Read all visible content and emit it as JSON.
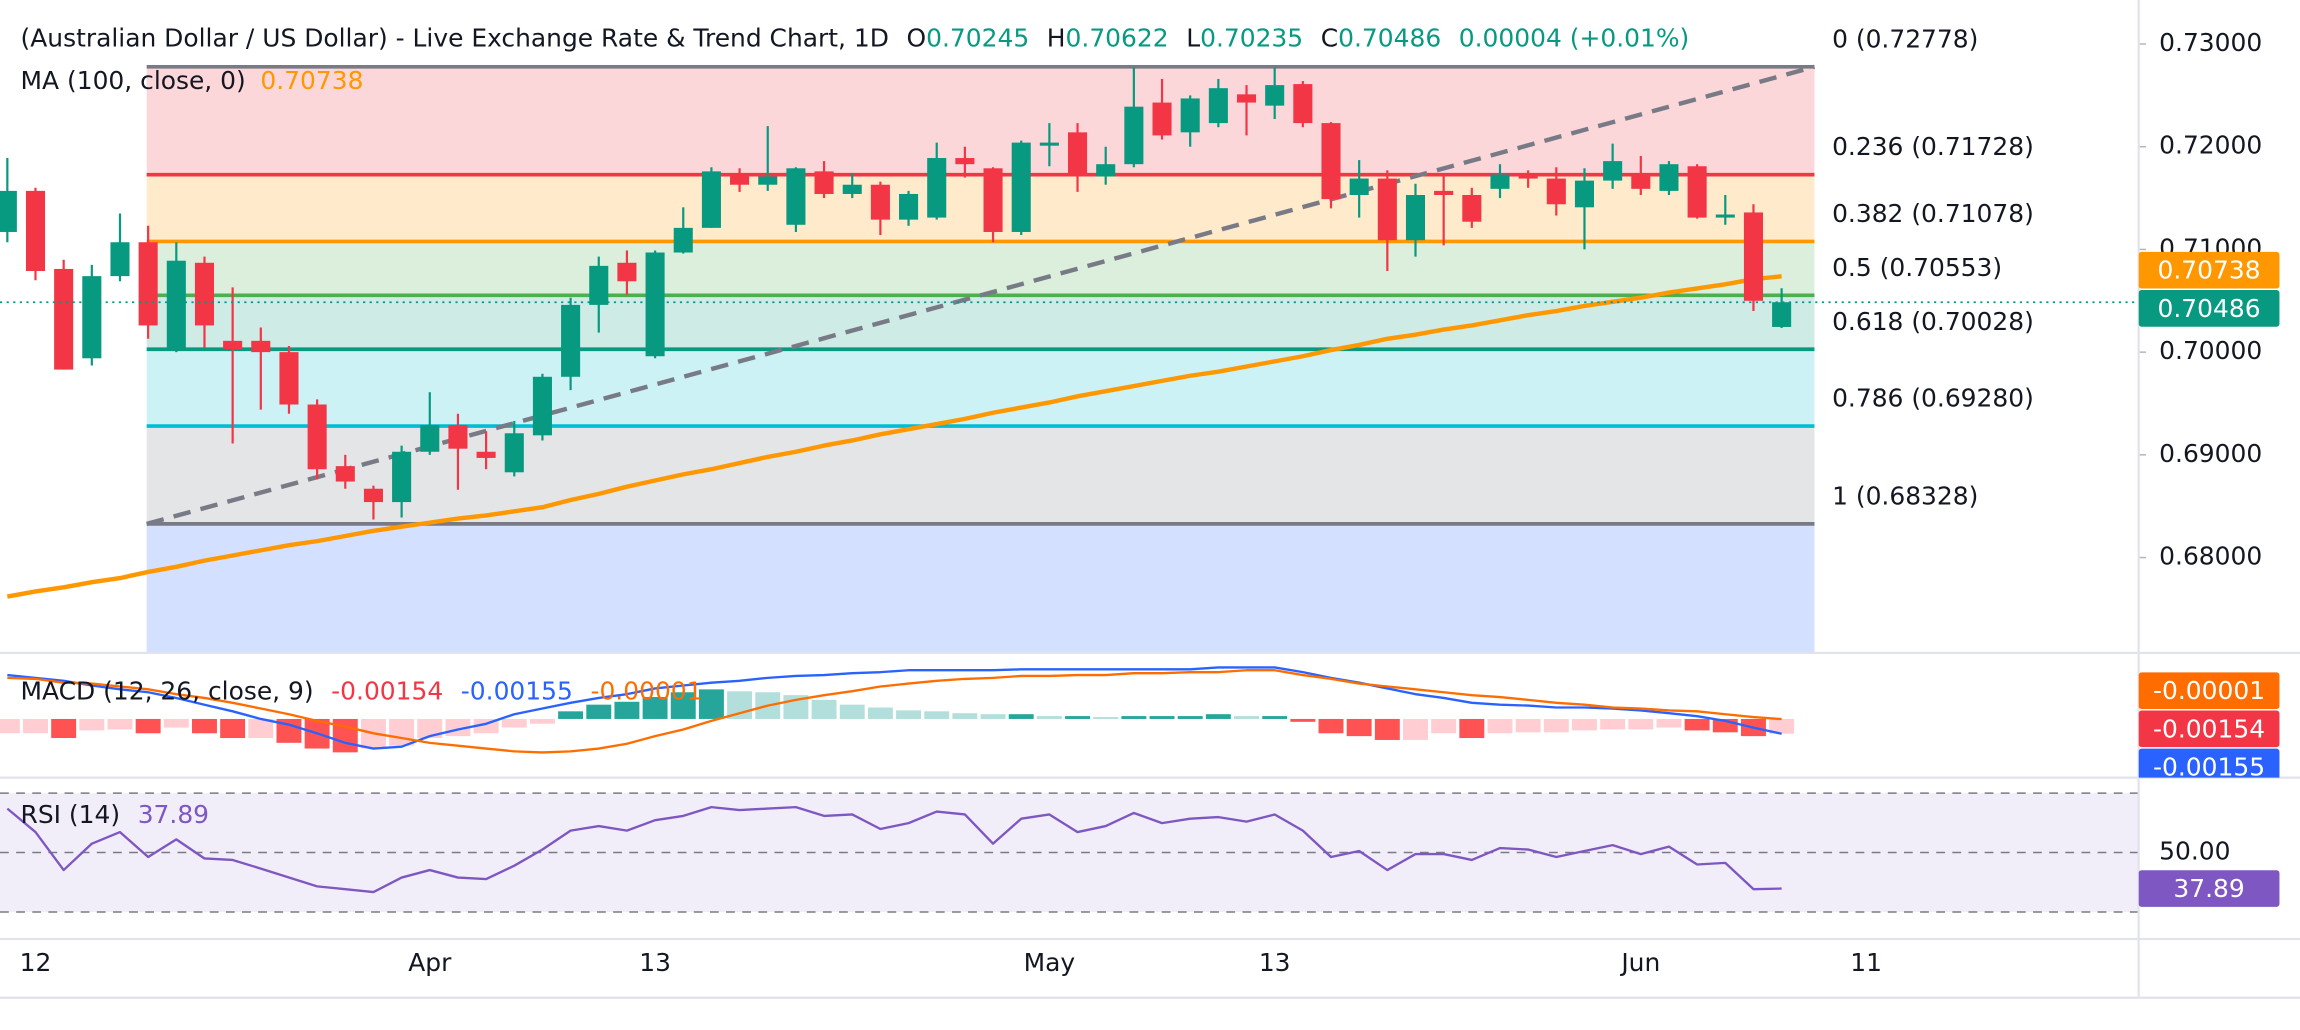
{
  "chart_data": {
    "type": "candlestick",
    "title": "(Australian Dollar / US Dollar) - Live Exchange Rate & Trend Chart, 1D",
    "header": {
      "open_label": "O",
      "high_label": "H",
      "low_label": "L",
      "close_label": "C",
      "change": "0.00004 (+0.01%)"
    },
    "categories": [
      null,
      "12",
      null,
      null,
      null,
      null,
      null,
      null,
      null,
      null,
      null,
      null,
      null,
      null,
      null,
      "Apr",
      null,
      null,
      null,
      null,
      null,
      null,
      null,
      "13",
      null,
      null,
      null,
      null,
      null,
      null,
      null,
      null,
      null,
      null,
      null,
      null,
      null,
      "May",
      null,
      null,
      null,
      null,
      null,
      null,
      null,
      "13",
      null,
      null,
      null,
      null,
      null,
      null,
      null,
      null,
      null,
      null,
      null,
      null,
      "Jun",
      null,
      null,
      null,
      null,
      null,
      null,
      null,
      "11"
    ],
    "open": [
      0.7117,
      0.7157,
      0.7081,
      0.6994,
      0.7074,
      0.7107,
      0.7004,
      0.7087,
      0.7011,
      0.7011,
      0.7,
      0.6949,
      0.6889,
      0.6867,
      0.6854,
      0.6903,
      0.6929,
      0.6903,
      0.6883,
      0.6919,
      0.6976,
      0.7046,
      0.7087,
      0.6996,
      0.7097,
      0.7121,
      0.7171,
      0.7163,
      0.7124,
      0.7176,
      0.7154,
      0.7163,
      0.7129,
      0.7131,
      0.7189,
      0.7179,
      0.7117,
      0.7201,
      0.7214,
      0.7171,
      0.7183,
      0.7243,
      0.7214,
      0.7223,
      0.7251,
      0.724,
      0.7261,
      0.7223,
      0.7153,
      0.7169,
      0.7109,
      0.7157,
      0.7153,
      0.7159,
      0.7173,
      0.7169,
      0.7141,
      0.7167,
      0.7174,
      0.7157,
      0.7181,
      0.7131,
      0.7136,
      0.70245,
      null,
      null,
      null
    ],
    "high": [
      0.7189,
      0.716,
      0.709,
      0.7085,
      0.7135,
      0.7123,
      0.7107,
      0.7093,
      0.7063,
      0.7024,
      0.7006,
      0.6954,
      0.69,
      0.687,
      0.6909,
      0.6961,
      0.694,
      0.6923,
      0.6933,
      0.6979,
      0.7053,
      0.7093,
      0.7099,
      0.7099,
      0.7141,
      0.718,
      0.7179,
      0.722,
      0.718,
      0.7186,
      0.7174,
      0.7166,
      0.7157,
      0.7204,
      0.72,
      0.718,
      0.7206,
      0.7223,
      0.7223,
      0.72,
      0.7277,
      0.7266,
      0.725,
      0.7266,
      0.726,
      0.7277,
      0.7264,
      0.7224,
      0.7187,
      0.7177,
      0.7164,
      0.7174,
      0.716,
      0.7183,
      0.7177,
      0.718,
      0.7179,
      0.7203,
      0.7191,
      0.7186,
      0.7183,
      0.7153,
      0.7144,
      0.70622,
      null,
      null,
      null
    ],
    "low": [
      0.7107,
      0.707,
      0.6983,
      0.6987,
      0.7069,
      0.7013,
      0.7,
      0.7004,
      0.6911,
      0.6944,
      0.694,
      0.6876,
      0.6867,
      0.6837,
      0.6839,
      0.69,
      0.6866,
      0.6886,
      0.6879,
      0.6914,
      0.6963,
      0.7019,
      0.7056,
      0.6994,
      0.7096,
      0.7121,
      0.7156,
      0.7157,
      0.7117,
      0.715,
      0.715,
      0.7114,
      0.7123,
      0.7129,
      0.717,
      0.7107,
      0.7114,
      0.7181,
      0.7156,
      0.7163,
      0.718,
      0.7207,
      0.72,
      0.7219,
      0.7211,
      0.7227,
      0.7219,
      0.714,
      0.7131,
      0.7079,
      0.7093,
      0.7104,
      0.7121,
      0.715,
      0.716,
      0.7133,
      0.71,
      0.7159,
      0.7153,
      0.7153,
      0.713,
      0.7124,
      0.704,
      0.70235,
      null,
      null,
      null
    ],
    "close": [
      0.7157,
      0.7079,
      0.6983,
      0.7074,
      0.7107,
      0.7026,
      0.7089,
      0.7026,
      0.7003,
      0.7,
      0.6949,
      0.6886,
      0.6874,
      0.6854,
      0.6903,
      0.6929,
      0.6906,
      0.6897,
      0.6921,
      0.6976,
      0.7046,
      0.7084,
      0.7069,
      0.7097,
      0.7121,
      0.7176,
      0.7163,
      0.7171,
      0.7179,
      0.7154,
      0.7163,
      0.7129,
      0.7154,
      0.7189,
      0.7183,
      0.7117,
      0.7204,
      0.7204,
      0.7171,
      0.7183,
      0.7239,
      0.7211,
      0.7247,
      0.7257,
      0.7243,
      0.726,
      0.7223,
      0.7149,
      0.7169,
      0.7109,
      0.7153,
      0.7153,
      0.7127,
      0.7173,
      0.7169,
      0.7144,
      0.7167,
      0.7186,
      0.7159,
      0.7183,
      0.7131,
      0.7134,
      0.705,
      0.70486,
      null,
      null,
      null
    ],
    "colors": {
      "up": "#089981",
      "down": "#f23645"
    },
    "ylim": [
      0.670714,
      0.734286
    ],
    "yticks": [
      {
        "value": 0.73,
        "label": "0.73000"
      },
      {
        "value": 0.72,
        "label": "0.72000"
      },
      {
        "value": 0.71,
        "label": "0.71000"
      },
      {
        "value": 0.7,
        "label": "0.70000"
      },
      {
        "value": 0.69,
        "label": "0.69000"
      },
      {
        "value": 0.68,
        "label": "0.68000"
      }
    ],
    "grid": false,
    "ma": {
      "name": "MA (100, close, 0)",
      "color": "#ff9800",
      "values": [
        0.6762,
        0.6767,
        0.6771,
        0.6776,
        0.678,
        0.6786,
        0.6791,
        0.6797,
        0.6802,
        0.6807,
        0.6812,
        0.6816,
        0.6821,
        0.6826,
        0.683,
        0.6834,
        0.6838,
        0.6841,
        0.6845,
        0.6849,
        0.6856,
        0.6862,
        0.6869,
        0.6875,
        0.6881,
        0.6886,
        0.6892,
        0.6898,
        0.6903,
        0.6909,
        0.6914,
        0.692,
        0.6925,
        0.693,
        0.6935,
        0.6941,
        0.6946,
        0.6951,
        0.6957,
        0.6962,
        0.6967,
        0.6972,
        0.6977,
        0.6981,
        0.6986,
        0.6991,
        0.6996,
        0.7002,
        0.7007,
        0.7013,
        0.7017,
        0.7022,
        0.7026,
        0.7031,
        0.7036,
        0.704,
        0.7045,
        0.7049,
        0.7053,
        0.7058,
        0.7062,
        0.7066,
        0.7071,
        0.70738,
        null,
        null,
        null
      ]
    },
    "fibonacci": {
      "extension_color": "#2962ff",
      "trend_color": "#787b86",
      "levels": [
        {
          "label": "0 (0.72778)",
          "value": 0.72778,
          "color": "#787b86"
        },
        {
          "label": "0.236 (0.71728)",
          "value": 0.71728,
          "color": "#f23645"
        },
        {
          "label": "0.382 (0.71078)",
          "value": 0.71078,
          "color": "#ff9800"
        },
        {
          "label": "0.5 (0.70553)",
          "value": 0.70553,
          "color": "#4caf50"
        },
        {
          "label": "0.618 (0.70028)",
          "value": 0.70028,
          "color": "#089981"
        },
        {
          "label": "0.786 (0.69280)",
          "value": 0.6928,
          "color": "#00bcd4"
        },
        {
          "label": "1 (0.68328)",
          "value": 0.68328,
          "color": "#787b86"
        }
      ]
    },
    "macd": {
      "name": "MACD (12, 26, close, 9)",
      "ylim": [
        -0.00615,
        0.00646
      ],
      "hist_colors": {
        "pos_up": "#26a69a",
        "pos_down": "#b2dfdb",
        "neg_down": "#ff5252",
        "neg_up": "#ffcdd2"
      },
      "histogram": {
        "color": "#f23645",
        "values": [
          -0.0015,
          -0.0015,
          -0.002,
          -0.0012,
          -0.0011,
          -0.0015,
          -0.0009,
          -0.0015,
          -0.002,
          -0.002,
          -0.0025,
          -0.0031,
          -0.0035,
          -0.0031,
          -0.0028,
          -0.002,
          -0.0018,
          -0.0015,
          -0.0009,
          -0.0005,
          0.0008,
          0.0015,
          0.0018,
          0.0023,
          0.0028,
          0.0031,
          0.0029,
          0.0028,
          0.0025,
          0.002,
          0.0015,
          0.0012,
          0.0009,
          0.0008,
          0.0006,
          0.0005,
          0.0005,
          0.0003,
          0.0003,
          0.0002,
          0.0003,
          0.0003,
          0.0003,
          0.0005,
          0.0003,
          0.0003,
          -0.0003,
          -0.0015,
          -0.0018,
          -0.0022,
          -0.0022,
          -0.0015,
          -0.002,
          -0.0015,
          -0.0014,
          -0.0014,
          -0.0012,
          -0.0011,
          -0.0011,
          -0.0009,
          -0.0012,
          -0.0014,
          -0.0018,
          -0.00154,
          null,
          null,
          null
        ]
      },
      "macd": {
        "color": "#2962ff",
        "values": [
          0.0046,
          0.0043,
          0.004,
          0.0035,
          0.0031,
          0.0028,
          0.0022,
          0.0015,
          0.0008,
          0,
          -0.0006,
          -0.0015,
          -0.0025,
          -0.0031,
          -0.0029,
          -0.0018,
          -0.0011,
          -0.0005,
          0.0005,
          0.0011,
          0.0017,
          0.0022,
          0.0026,
          0.0032,
          0.0035,
          0.0038,
          0.004,
          0.0043,
          0.0045,
          0.0046,
          0.0048,
          0.0049,
          0.0051,
          0.0051,
          0.0051,
          0.0051,
          0.0052,
          0.0052,
          0.0052,
          0.0052,
          0.0052,
          0.0052,
          0.0052,
          0.0054,
          0.0054,
          0.0054,
          0.0049,
          0.0043,
          0.0038,
          0.0032,
          0.0026,
          0.0022,
          0.0017,
          0.0015,
          0.0014,
          0.0012,
          0.0012,
          0.0011,
          0.0009,
          0.0006,
          0.0003,
          -0.0002,
          -0.0009,
          -0.00155,
          null,
          null,
          null
        ]
      },
      "signal": {
        "color": "#ff6d00",
        "values": [
          0.0043,
          0.0042,
          0.0038,
          0.0037,
          0.0034,
          0.0031,
          0.0026,
          0.0022,
          0.0017,
          0.0011,
          0.0005,
          -0.0002,
          -0.0008,
          -0.0015,
          -0.002,
          -0.0025,
          -0.0028,
          -0.0031,
          -0.0034,
          -0.0035,
          -0.0034,
          -0.0031,
          -0.0026,
          -0.0018,
          -0.0011,
          -0.0002,
          0.0006,
          0.0014,
          0.002,
          0.0025,
          0.0029,
          0.0034,
          0.0037,
          0.004,
          0.0042,
          0.0043,
          0.0045,
          0.0045,
          0.0046,
          0.0046,
          0.0048,
          0.0048,
          0.0049,
          0.0049,
          0.0051,
          0.0051,
          0.0046,
          0.0042,
          0.0037,
          0.0034,
          0.0031,
          0.0028,
          0.0025,
          0.0023,
          0.002,
          0.0017,
          0.0015,
          0.0012,
          0.0011,
          0.0009,
          0.0008,
          0.0005,
          0.0002,
          -1e-05,
          null,
          null,
          null
        ]
      }
    },
    "rsi": {
      "name": "RSI (14)",
      "color": "#7e57c2",
      "ylim": [
        20.9,
        75.2
      ],
      "yticks": [
        {
          "value": 50,
          "label": "50.00"
        }
      ],
      "band": [
        30,
        70
      ],
      "values": [
        64.8,
        56.9,
        44.1,
        53,
        56.9,
        48.5,
        54.4,
        48,
        47.5,
        44.6,
        41.6,
        38.6,
        37.7,
        36.7,
        41.6,
        44.1,
        41.6,
        41.1,
        45.6,
        51,
        57.4,
        58.9,
        57.4,
        60.9,
        62.3,
        65.3,
        64.3,
        64.8,
        65.3,
        62.3,
        62.8,
        57.9,
        59.9,
        63.8,
        62.8,
        53,
        61.4,
        62.8,
        56.9,
        58.9,
        63.3,
        59.9,
        61.4,
        61.9,
        60.4,
        62.8,
        57.4,
        48.5,
        50.5,
        44.1,
        49.5,
        49.5,
        47.5,
        51.5,
        51,
        48.5,
        50.5,
        52.5,
        49.5,
        52,
        46,
        46.5,
        37.7,
        37.89,
        null,
        null,
        null
      ]
    }
  }
}
